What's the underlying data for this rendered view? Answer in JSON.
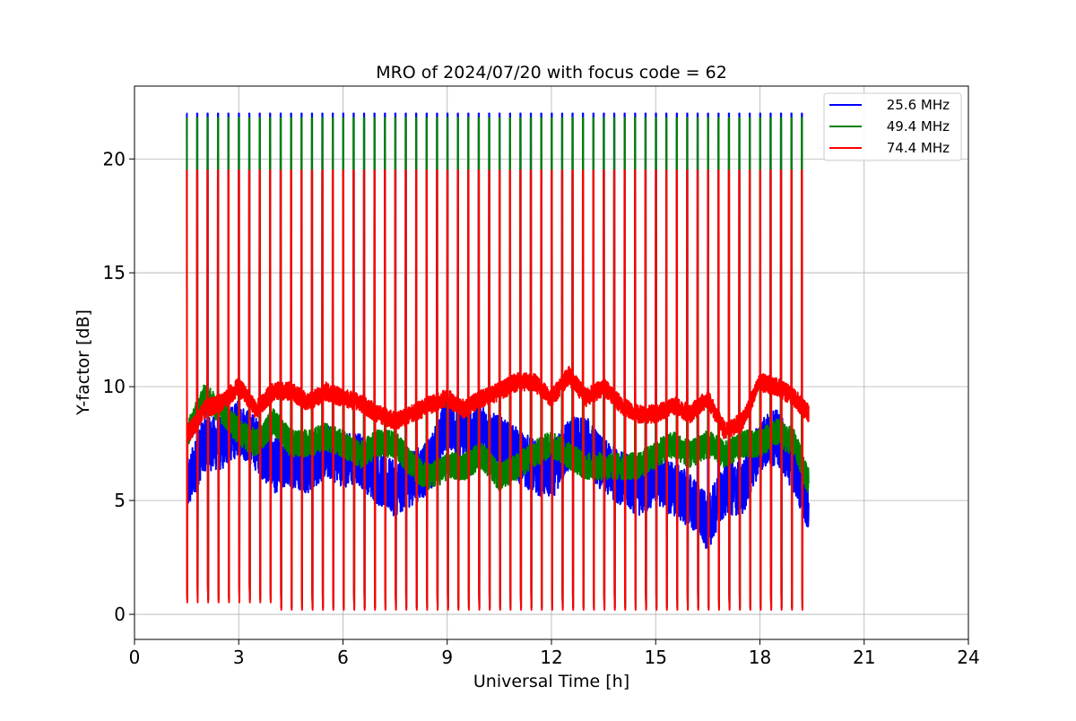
{
  "chart_data": {
    "type": "line",
    "title": "MRO of 2024/07/20 with focus code = 62",
    "xlabel": "Universal Time [h]",
    "ylabel": "Y-factor [dB]",
    "xlim": [
      0,
      24
    ],
    "ylim": [
      -1.1,
      23.2
    ],
    "xticks": [
      0,
      3,
      6,
      9,
      12,
      15,
      18,
      21,
      24
    ],
    "yticks": [
      0,
      5,
      10,
      15,
      20
    ],
    "grid": true,
    "legend_position": "top-right",
    "data_range_x": [
      1.5,
      19.4
    ],
    "calibration_period_h": 0.3,
    "series": [
      {
        "name": "25.6 MHz",
        "color": "#0000ff",
        "calibration_peak": 22.0,
        "calibration_floor": 0.3,
        "baseline": [
          [
            1.5,
            5.5
          ],
          [
            2.0,
            7.5
          ],
          [
            2.5,
            7.5
          ],
          [
            3.0,
            8.2
          ],
          [
            3.5,
            7.5
          ],
          [
            4.0,
            6.5
          ],
          [
            4.5,
            6.8
          ],
          [
            5.0,
            6.5
          ],
          [
            5.5,
            7.2
          ],
          [
            6.0,
            6.8
          ],
          [
            6.5,
            6.8
          ],
          [
            7.0,
            6.0
          ],
          [
            7.5,
            5.5
          ],
          [
            8.0,
            6.0
          ],
          [
            8.5,
            6.5
          ],
          [
            9.0,
            8.5
          ],
          [
            9.5,
            8.0
          ],
          [
            10.0,
            8.0
          ],
          [
            10.5,
            7.5
          ],
          [
            11.0,
            7.0
          ],
          [
            11.5,
            6.5
          ],
          [
            12.0,
            6.2
          ],
          [
            12.5,
            7.5
          ],
          [
            13.0,
            7.5
          ],
          [
            13.5,
            6.5
          ],
          [
            14.0,
            6.0
          ],
          [
            14.5,
            5.5
          ],
          [
            15.0,
            6.0
          ],
          [
            15.5,
            5.5
          ],
          [
            16.0,
            5.0
          ],
          [
            16.5,
            4.0
          ],
          [
            17.0,
            5.5
          ],
          [
            17.5,
            5.5
          ],
          [
            18.0,
            7.5
          ],
          [
            18.5,
            7.8
          ],
          [
            19.0,
            6.5
          ],
          [
            19.4,
            4.8
          ]
        ],
        "jitter": 1.2
      },
      {
        "name": "49.4 MHz",
        "color": "#008000",
        "calibration_peak": 21.8,
        "calibration_floor": 0.3,
        "baseline": [
          [
            1.5,
            7.8
          ],
          [
            2.0,
            9.5
          ],
          [
            2.5,
            9.0
          ],
          [
            3.0,
            8.0
          ],
          [
            3.5,
            7.5
          ],
          [
            4.0,
            8.5
          ],
          [
            4.5,
            7.5
          ],
          [
            5.0,
            7.5
          ],
          [
            5.5,
            7.8
          ],
          [
            6.0,
            7.5
          ],
          [
            6.5,
            7.0
          ],
          [
            7.0,
            7.5
          ],
          [
            7.5,
            7.5
          ],
          [
            8.0,
            6.5
          ],
          [
            8.5,
            6.0
          ],
          [
            9.0,
            6.5
          ],
          [
            9.5,
            6.5
          ],
          [
            10.0,
            7.0
          ],
          [
            10.5,
            6.0
          ],
          [
            11.0,
            6.5
          ],
          [
            11.5,
            7.0
          ],
          [
            12.0,
            7.5
          ],
          [
            12.5,
            7.0
          ],
          [
            13.0,
            6.5
          ],
          [
            13.5,
            6.5
          ],
          [
            14.0,
            6.5
          ],
          [
            14.5,
            6.5
          ],
          [
            15.0,
            7.0
          ],
          [
            15.5,
            7.5
          ],
          [
            16.0,
            7.0
          ],
          [
            16.5,
            7.5
          ],
          [
            17.0,
            7.0
          ],
          [
            17.5,
            7.5
          ],
          [
            18.0,
            7.5
          ],
          [
            18.5,
            8.0
          ],
          [
            19.0,
            7.5
          ],
          [
            19.4,
            5.8
          ]
        ],
        "jitter": 0.6
      },
      {
        "name": "74.4 MHz",
        "color": "#ff0000",
        "calibration_peak": 19.5,
        "calibration_floor": 0.2,
        "baseline": [
          [
            1.5,
            7.8
          ],
          [
            2.0,
            9.0
          ],
          [
            2.5,
            9.3
          ],
          [
            3.0,
            10.0
          ],
          [
            3.5,
            9.0
          ],
          [
            4.0,
            9.8
          ],
          [
            4.5,
            9.8
          ],
          [
            5.0,
            9.3
          ],
          [
            5.5,
            9.8
          ],
          [
            6.0,
            9.5
          ],
          [
            6.5,
            9.3
          ],
          [
            7.0,
            8.8
          ],
          [
            7.5,
            8.5
          ],
          [
            8.0,
            8.8
          ],
          [
            8.5,
            9.2
          ],
          [
            9.0,
            9.5
          ],
          [
            9.5,
            9.0
          ],
          [
            10.0,
            9.5
          ],
          [
            10.5,
            9.8
          ],
          [
            11.0,
            10.2
          ],
          [
            11.5,
            10.2
          ],
          [
            12.0,
            9.5
          ],
          [
            12.5,
            10.5
          ],
          [
            13.0,
            9.5
          ],
          [
            13.5,
            10.0
          ],
          [
            14.0,
            9.2
          ],
          [
            14.5,
            8.8
          ],
          [
            15.0,
            8.8
          ],
          [
            15.5,
            9.2
          ],
          [
            16.0,
            8.8
          ],
          [
            16.5,
            9.5
          ],
          [
            17.0,
            8.0
          ],
          [
            17.5,
            8.5
          ],
          [
            18.0,
            10.2
          ],
          [
            18.5,
            10.0
          ],
          [
            19.0,
            9.5
          ],
          [
            19.4,
            8.8
          ]
        ],
        "jitter": 0.4
      }
    ]
  }
}
